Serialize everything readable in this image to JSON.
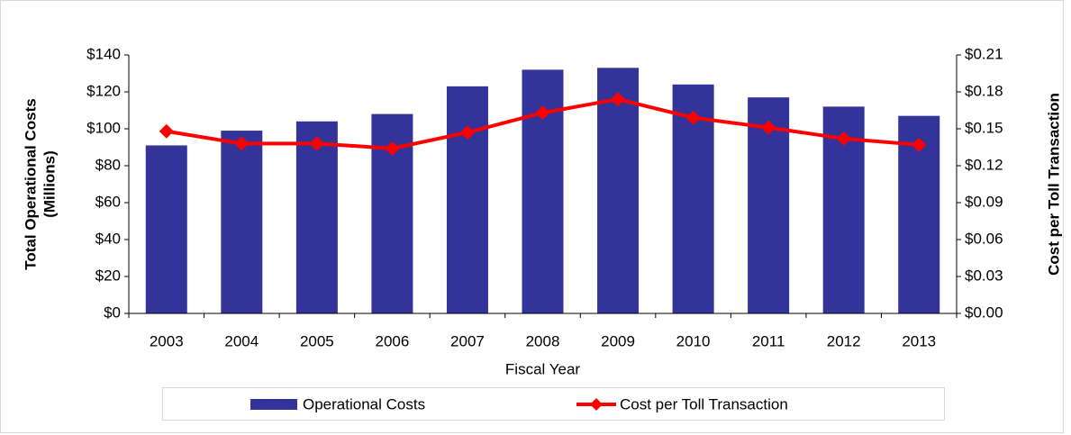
{
  "chart_data": {
    "type": "bar_line",
    "categories": [
      "2003",
      "2004",
      "2005",
      "2006",
      "2007",
      "2008",
      "2009",
      "2010",
      "2011",
      "2012",
      "2013"
    ],
    "series": [
      {
        "name": "Operational Costs",
        "color": "#333399",
        "type": "bar",
        "values": [
          91,
          99,
          104,
          108,
          123,
          132,
          133,
          124,
          117,
          112,
          107
        ]
      },
      {
        "name": "Cost per Toll Transaction",
        "color": "#ff0000",
        "type": "line",
        "axis": "y2",
        "values": [
          0.148,
          0.138,
          0.138,
          0.134,
          0.147,
          0.163,
          0.174,
          0.159,
          0.151,
          0.142,
          0.137
        ]
      }
    ],
    "xlabel": "Fiscal Year",
    "ylabel": [
      "Total Operational Costs",
      "(Millions)"
    ],
    "y2label": "Cost per Toll Transaction",
    "ylim": [
      0,
      140
    ],
    "yticks": [
      {
        "value": 0,
        "label": "$0"
      },
      {
        "value": 20,
        "label": "$20"
      },
      {
        "value": 40,
        "label": "$40"
      },
      {
        "value": 60,
        "label": "$60"
      },
      {
        "value": 80,
        "label": "$80"
      },
      {
        "value": 100,
        "label": "$100"
      },
      {
        "value": 120,
        "label": "$120"
      },
      {
        "value": 140,
        "label": "$140"
      }
    ],
    "y2lim": [
      0,
      0.21
    ],
    "y2ticks": [
      {
        "value": 0,
        "label": "$0.00"
      },
      {
        "value": 0.03,
        "label": "$0.03"
      },
      {
        "value": 0.06,
        "label": "$0.06"
      },
      {
        "value": 0.09,
        "label": "$0.09"
      },
      {
        "value": 0.12,
        "label": "$0.12"
      },
      {
        "value": 0.15,
        "label": "$0.15"
      },
      {
        "value": 0.18,
        "label": "$0.18"
      },
      {
        "value": 0.21,
        "label": "$0.21"
      }
    ],
    "grid": false,
    "legend": "bottom"
  }
}
